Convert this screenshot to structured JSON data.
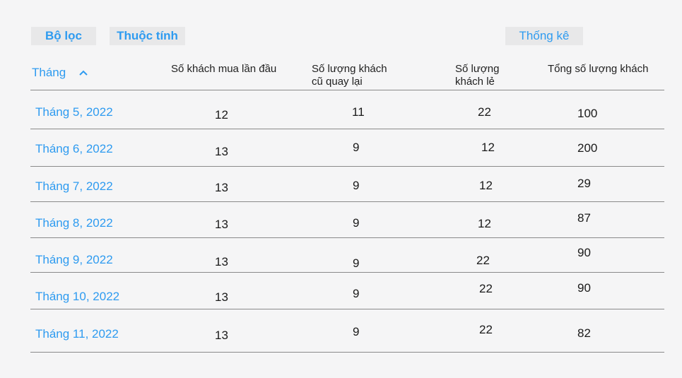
{
  "toolbar": {
    "filter_label": "Bộ lọc",
    "attribute_label": "Thuộc tính",
    "stats_label": "Thống kê"
  },
  "table": {
    "headers": {
      "month": "Tháng",
      "first_time": "Số khách mua lần đầu",
      "returning_l1": "Số lượng khách",
      "returning_l2": "cũ quay lại",
      "retail_l1": "Số lượng",
      "retail_l2": "khách lẻ",
      "total": "Tổng số lượng khách"
    },
    "rows": [
      {
        "month": "Tháng 5, 2022",
        "first_time": "12",
        "returning": "11",
        "retail": "22",
        "total": "100"
      },
      {
        "month": "Tháng 6, 2022",
        "first_time": "13",
        "returning": "9",
        "retail": "12",
        "total": "200"
      },
      {
        "month": "Tháng 7, 2022",
        "first_time": "13",
        "returning": "9",
        "retail": "12",
        "total": "29"
      },
      {
        "month": "Tháng 8, 2022",
        "first_time": "13",
        "returning": "9",
        "retail": "12",
        "total": "87"
      },
      {
        "month": "Tháng 9, 2022",
        "first_time": "13",
        "returning": "9",
        "retail": "22",
        "total": "90"
      },
      {
        "month": "Tháng 10, 2022",
        "first_time": "13",
        "returning": "9",
        "retail": "22",
        "total": "90"
      },
      {
        "month": "Tháng 11, 2022",
        "first_time": "13",
        "returning": "9",
        "retail": "22",
        "total": "82"
      }
    ]
  }
}
